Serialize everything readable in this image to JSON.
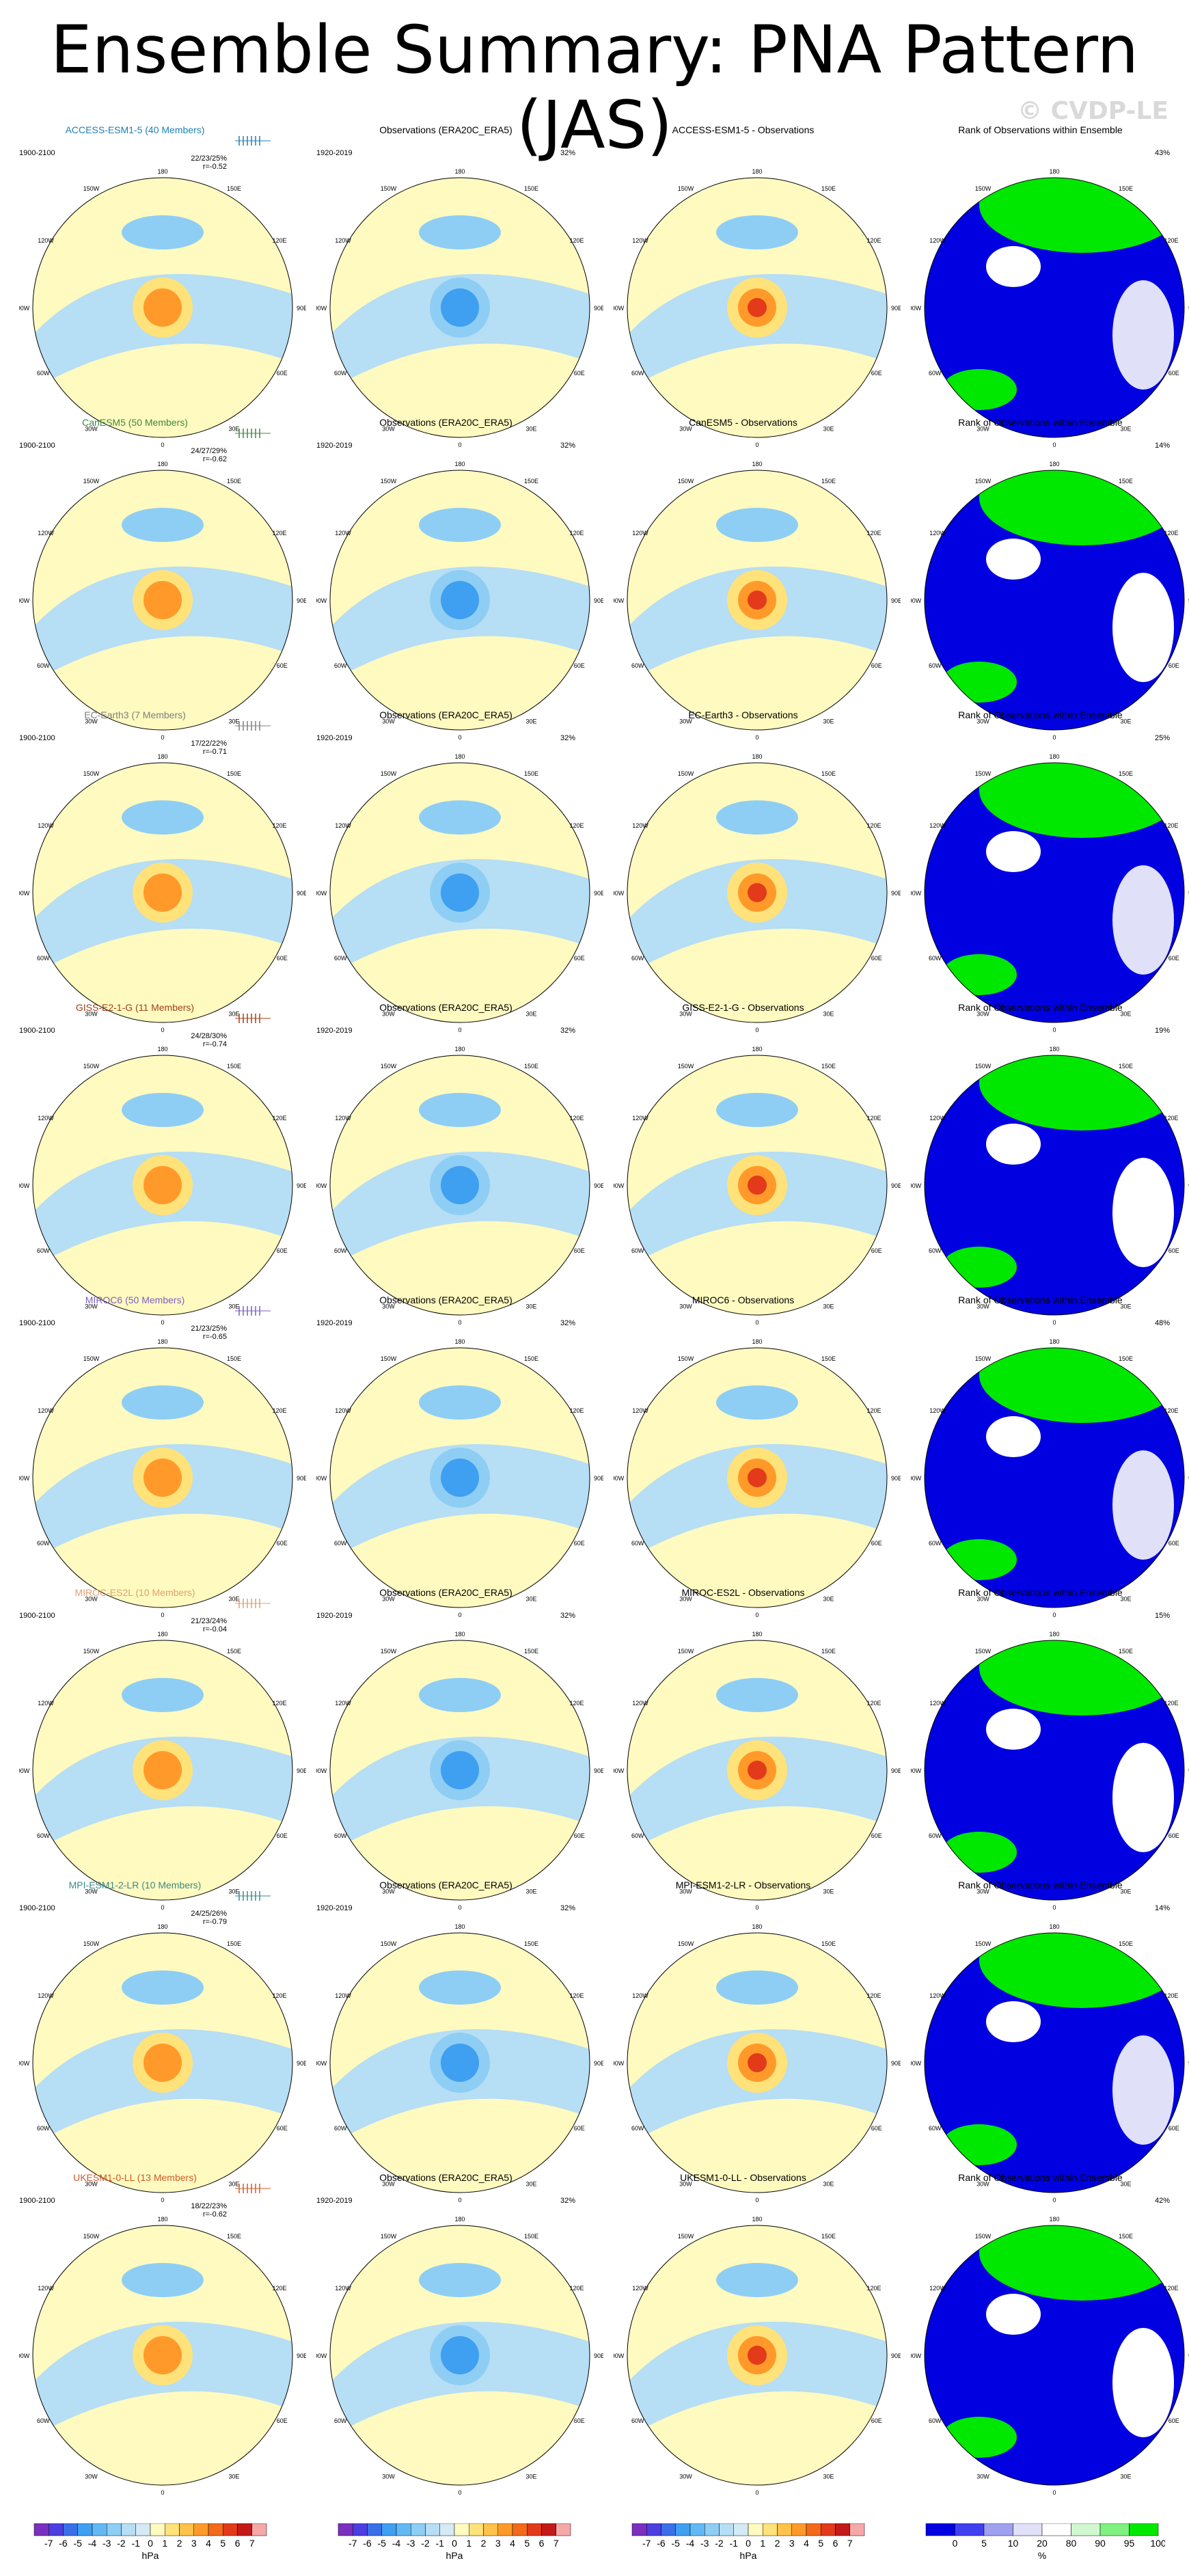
{
  "title": "Ensemble Summary: PNA Pattern (JAS)",
  "watermark": "© CVDP-LE",
  "obs_title": "Observations (ERA20C_ERA5)",
  "rank_title": "Rank of Observations within Ensemble",
  "model_period": "1900-2100",
  "obs_period": "1920-2019",
  "obs_pct": "32%",
  "lon_labels": [
    "180",
    "150W",
    "150E",
    "120W",
    "120E",
    "90W",
    "90E",
    "60W",
    "60E",
    "30W",
    "30E",
    "0"
  ],
  "rows": [
    {
      "model_title": "ACCESS-ESM1-5 (40 Members)",
      "diff_title": "ACCESS-ESM1-5 - Observations",
      "stats1": "22/23/25%",
      "stats2": "r=-0.52",
      "rank_pct": "43%",
      "color": "#1f7fb4"
    },
    {
      "model_title": "CanESM5 (50 Members)",
      "diff_title": "CanESM5 - Observations",
      "stats1": "24/27/29%",
      "stats2": "r=-0.62",
      "rank_pct": "14%",
      "color": "#3c8a3c"
    },
    {
      "model_title": "EC-Earth3 (7 Members)",
      "diff_title": "EC-Earth3 - Observations",
      "stats1": "17/22/22%",
      "stats2": "r=-0.71",
      "rank_pct": "25%",
      "color": "#7f7f7f"
    },
    {
      "model_title": "GISS-E2-1-G (11 Members)",
      "diff_title": "GISS-E2-1-G - Observations",
      "stats1": "24/28/30%",
      "stats2": "r=-0.74",
      "rank_pct": "19%",
      "color": "#a0401a"
    },
    {
      "model_title": "MIROC6 (50 Members)",
      "diff_title": "MIROC6 - Observations",
      "stats1": "21/23/25%",
      "stats2": "r=-0.65",
      "rank_pct": "48%",
      "color": "#7b5fc7"
    },
    {
      "model_title": "MIROC-ES2L (10 Members)",
      "diff_title": "MIROC-ES2L - Observations",
      "stats1": "21/23/24%",
      "stats2": "r=-0.04",
      "rank_pct": "15%",
      "color": "#e0a070"
    },
    {
      "model_title": "MPI-ESM1-2-LR (10 Members)",
      "diff_title": "MPI-ESM1-2-LR - Observations",
      "stats1": "24/25/26%",
      "stats2": "r=-0.79",
      "rank_pct": "14%",
      "color": "#3a8a8a"
    },
    {
      "model_title": "UKESM1-0-LL (13 Members)",
      "diff_title": "UKESM1-0-LL - Observations",
      "stats1": "18/22/23%",
      "stats2": "r=-0.62",
      "rank_pct": "42%",
      "color": "#d05a2a"
    }
  ],
  "colorbars": {
    "hpa_ticks": [
      "-7",
      "-6",
      "-5",
      "-4",
      "-3",
      "-2",
      "-1",
      "0",
      "1",
      "2",
      "3",
      "4",
      "5",
      "6",
      "7"
    ],
    "hpa_unit": "hPa",
    "hpa_colors": [
      "#7b2fbf",
      "#4b3fe0",
      "#3b6fe8",
      "#3f9ff0",
      "#62b8f4",
      "#8ecef4",
      "#b6def4",
      "#d4eaf4",
      "#fffac0",
      "#ffe27a",
      "#ffc24a",
      "#ff9a2a",
      "#f26a1a",
      "#e23a1a",
      "#c21a1a",
      "#f5a8a8"
    ],
    "pct_ticks": [
      "0",
      "5",
      "10",
      "20",
      "80",
      "90",
      "95",
      "100"
    ],
    "pct_unit": "%",
    "pct_colors": [
      "#0000e0",
      "#4040f0",
      "#a0a0f0",
      "#e0e0f8",
      "#ffffff",
      "#d0f8d0",
      "#80f080",
      "#00e800"
    ]
  }
}
